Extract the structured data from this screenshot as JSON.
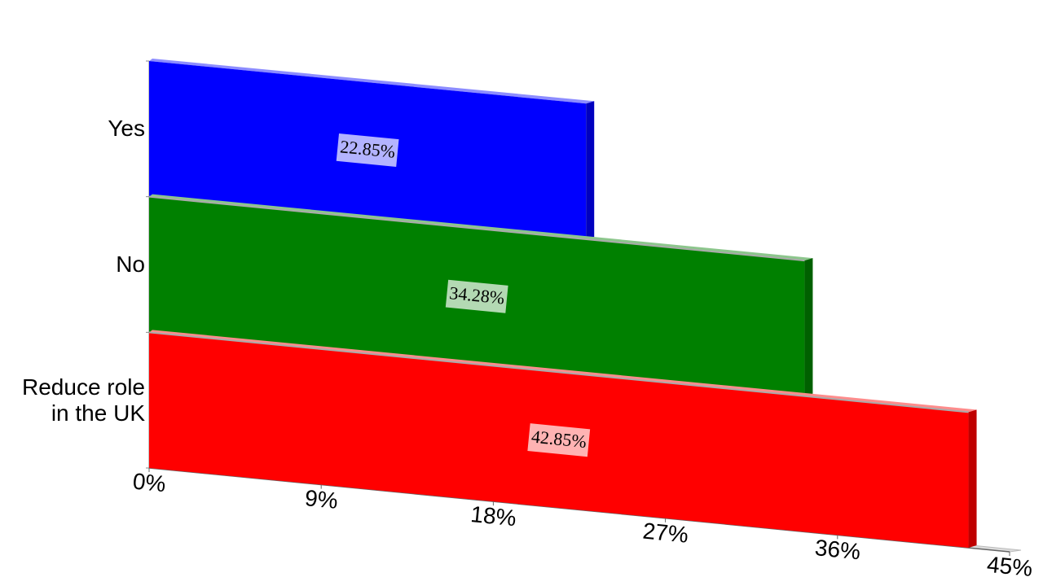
{
  "chart_data": {
    "type": "bar3d",
    "categories": [
      "Yes",
      "No",
      "Reduce role in the UK"
    ],
    "values": [
      22.85,
      34.28,
      42.85
    ],
    "value_labels": [
      "22.85%",
      "34.28%",
      "42.85%"
    ],
    "colors": [
      "#0000ff",
      "#008000",
      "#ff0000"
    ],
    "xlim": [
      0,
      45
    ],
    "xticks": [
      {
        "value": 0,
        "label": "0%"
      },
      {
        "value": 9,
        "label": "9%"
      },
      {
        "value": 18,
        "label": "18%"
      },
      {
        "value": 27,
        "label": "27%"
      },
      {
        "value": 36,
        "label": "36%"
      },
      {
        "value": 45,
        "label": "45%"
      }
    ]
  }
}
